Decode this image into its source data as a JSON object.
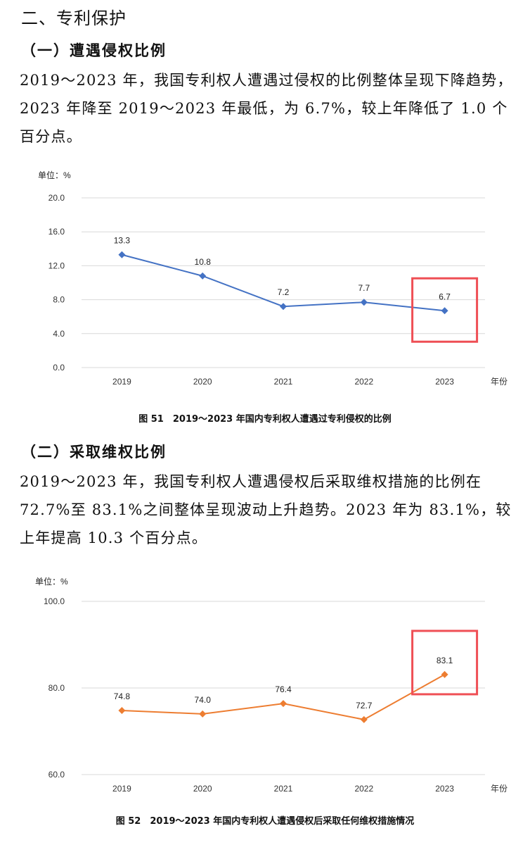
{
  "section_title": "二、专利保护",
  "subsection1": {
    "title": "（一）遭遇侵权比例",
    "paragraph": "2019～2023 年，我国专利权人遭遇过侵权的比例整体呈现下降趋势，2023 年降至 2019～2023 年最低，为 6.7%，较上年降低了 1.0 个百分点。"
  },
  "subsection2": {
    "title": "（二）采取维权比例",
    "paragraph": "2019～2023 年，我国专利权人遭遇侵权后采取维权措施的比例在 72.7%至 83.1%之间整体呈现波动上升趋势。2023 年为 83.1%，较上年提高 10.3 个百分点。"
  },
  "chart_data": [
    {
      "type": "line",
      "title": "图 51　2019～2023 年国内专利权人遭遇过专利侵权的比例",
      "unit_label": "单位：%",
      "xlabel": "年份",
      "ylabel": "",
      "categories": [
        "2019",
        "2020",
        "2021",
        "2022",
        "2023"
      ],
      "values": [
        13.3,
        10.8,
        7.2,
        7.7,
        6.7
      ],
      "data_labels": [
        "13.3",
        "10.8",
        "7.2",
        "7.7",
        "6.7"
      ],
      "yticks": [
        "0.0",
        "4.0",
        "8.0",
        "12.0",
        "16.0",
        "20.0"
      ],
      "ylim": [
        0,
        20
      ],
      "grid": true,
      "line_color": "#4472c4",
      "highlight_category": "2023",
      "highlight_color": "#ef4f55"
    },
    {
      "type": "line",
      "title": "图 52　2019～2023 年国内专利权人遭遇侵权后采取任何维权措施情况",
      "unit_label": "单位：%",
      "xlabel": "年份",
      "ylabel": "",
      "categories": [
        "2019",
        "2020",
        "2021",
        "2022",
        "2023"
      ],
      "values": [
        74.8,
        74.0,
        76.4,
        72.7,
        83.1
      ],
      "data_labels": [
        "74.8",
        "74.0",
        "76.4",
        "72.7",
        "83.1"
      ],
      "yticks": [
        "60.0",
        "80.0",
        "100.0"
      ],
      "ylim": [
        60,
        100
      ],
      "grid": true,
      "line_color": "#ed7d31",
      "highlight_category": "2023",
      "highlight_color": "#ef4f55"
    }
  ]
}
